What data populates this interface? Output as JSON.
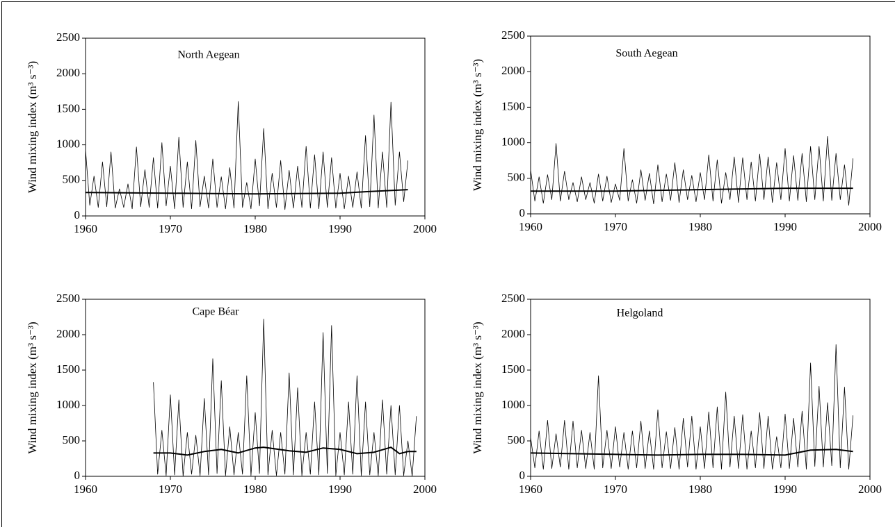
{
  "chart_data": [
    {
      "type": "line",
      "title": "North Aegean",
      "y_label": "Wind mixing index (m³ s⁻³)",
      "xlim": [
        1960,
        2000
      ],
      "xticks": [
        1960,
        1970,
        1980,
        1990,
        2000
      ],
      "ylim": [
        0,
        2500
      ],
      "yticks": [
        0,
        500,
        1000,
        1500,
        2000,
        2500
      ],
      "series": [
        {
          "color": "#000000",
          "line_width": 0.8,
          "x": [
            1960,
            1960.5,
            1961,
            1961.5,
            1962,
            1962.5,
            1963,
            1963.5,
            1964,
            1964.5,
            1965,
            1965.5,
            1966,
            1966.5,
            1967,
            1967.5,
            1968,
            1968.5,
            1969,
            1969.5,
            1970,
            1970.5,
            1971,
            1971.5,
            1972,
            1972.5,
            1973,
            1973.5,
            1974,
            1974.5,
            1975,
            1975.5,
            1976,
            1976.5,
            1977,
            1977.5,
            1978,
            1978.5,
            1979,
            1979.5,
            1980,
            1980.5,
            1981,
            1981.5,
            1982,
            1982.5,
            1983,
            1983.5,
            1984,
            1984.5,
            1985,
            1985.5,
            1986,
            1986.5,
            1987,
            1987.5,
            1988,
            1988.5,
            1989,
            1989.5,
            1990,
            1990.5,
            1991,
            1991.5,
            1992,
            1992.5,
            1993,
            1993.5,
            1994,
            1994.5,
            1995,
            1995.5,
            1996,
            1996.5,
            1997,
            1997.5,
            1998
          ],
          "values": [
            930,
            150,
            560,
            120,
            760,
            130,
            900,
            110,
            380,
            120,
            450,
            100,
            970,
            130,
            650,
            120,
            820,
            110,
            1030,
            140,
            700,
            100,
            1110,
            120,
            760,
            100,
            1060,
            130,
            560,
            110,
            800,
            120,
            550,
            100,
            680,
            110,
            1610,
            120,
            470,
            100,
            800,
            140,
            1230,
            100,
            600,
            120,
            780,
            90,
            640,
            110,
            700,
            120,
            980,
            110,
            860,
            100,
            900,
            120,
            820,
            110,
            600,
            100,
            560,
            120,
            620,
            110,
            1130,
            130,
            1420,
            110,
            900,
            120,
            1600,
            150,
            900,
            200,
            780
          ]
        },
        {
          "color": "#000000",
          "line_width": 2,
          "x": [
            1960,
            1965,
            1970,
            1975,
            1980,
            1985,
            1990,
            1993,
            1998
          ],
          "values": [
            330,
            325,
            320,
            315,
            310,
            315,
            320,
            340,
            370
          ]
        }
      ]
    },
    {
      "type": "line",
      "title": "South Aegean",
      "y_label": "Wind mixing index (m³ s⁻³)",
      "xlim": [
        1960,
        2000
      ],
      "xticks": [
        1960,
        1970,
        1980,
        1990,
        2000
      ],
      "ylim": [
        0,
        2500
      ],
      "yticks": [
        0,
        500,
        1000,
        1500,
        2000,
        2500
      ],
      "series": [
        {
          "color": "#000000",
          "line_width": 0.8,
          "x": [
            1960,
            1960.5,
            1961,
            1961.5,
            1962,
            1962.5,
            1963,
            1963.5,
            1964,
            1964.5,
            1965,
            1965.5,
            1966,
            1966.5,
            1967,
            1967.5,
            1968,
            1968.5,
            1969,
            1969.5,
            1970,
            1970.5,
            1971,
            1971.5,
            1972,
            1972.5,
            1973,
            1973.5,
            1974,
            1974.5,
            1975,
            1975.5,
            1976,
            1976.5,
            1977,
            1977.5,
            1978,
            1978.5,
            1979,
            1979.5,
            1980,
            1980.5,
            1981,
            1981.5,
            1982,
            1982.5,
            1983,
            1983.5,
            1984,
            1984.5,
            1985,
            1985.5,
            1986,
            1986.5,
            1987,
            1987.5,
            1988,
            1988.5,
            1989,
            1989.5,
            1990,
            1990.5,
            1991,
            1991.5,
            1992,
            1992.5,
            1993,
            1993.5,
            1994,
            1994.5,
            1995,
            1995.5,
            1996,
            1996.5,
            1997,
            1997.5,
            1998
          ],
          "values": [
            620,
            180,
            520,
            150,
            550,
            200,
            990,
            180,
            600,
            200,
            440,
            170,
            520,
            200,
            440,
            150,
            560,
            180,
            530,
            160,
            420,
            190,
            920,
            180,
            480,
            150,
            620,
            190,
            570,
            140,
            690,
            170,
            560,
            190,
            720,
            160,
            620,
            200,
            540,
            170,
            580,
            200,
            830,
            180,
            760,
            150,
            580,
            200,
            800,
            160,
            790,
            200,
            730,
            180,
            840,
            200,
            800,
            160,
            720,
            200,
            920,
            180,
            820,
            190,
            850,
            170,
            950,
            200,
            950,
            180,
            1090,
            190,
            850,
            200,
            690,
            120,
            780
          ]
        },
        {
          "color": "#000000",
          "line_width": 2,
          "x": [
            1960,
            1970,
            1980,
            1990,
            1998
          ],
          "values": [
            320,
            320,
            340,
            360,
            360
          ]
        }
      ]
    },
    {
      "type": "line",
      "title": "Cape Béar",
      "y_label": "Wind mixing index (m³ s⁻³)",
      "xlim": [
        1960,
        2000
      ],
      "xticks": [
        1960,
        1970,
        1980,
        1990,
        2000
      ],
      "ylim": [
        0,
        2500
      ],
      "yticks": [
        0,
        500,
        1000,
        1500,
        2000,
        2500
      ],
      "series": [
        {
          "color": "#000000",
          "line_width": 0.8,
          "x": [
            1968,
            1968.5,
            1969,
            1969.5,
            1970,
            1970.5,
            1971,
            1971.5,
            1972,
            1972.5,
            1973,
            1973.5,
            1974,
            1974.5,
            1975,
            1975.5,
            1976,
            1976.5,
            1977,
            1977.5,
            1978,
            1978.5,
            1979,
            1979.5,
            1980,
            1980.5,
            1981,
            1981.5,
            1982,
            1982.5,
            1983,
            1983.5,
            1984,
            1984.5,
            1985,
            1985.5,
            1986,
            1986.5,
            1987,
            1987.5,
            1988,
            1988.5,
            1989,
            1989.5,
            1990,
            1990.5,
            1991,
            1991.5,
            1992,
            1992.5,
            1993,
            1993.5,
            1994,
            1994.5,
            1995,
            1995.5,
            1996,
            1996.5,
            1997,
            1997.5,
            1998,
            1998.5,
            1999
          ],
          "values": [
            1330,
            30,
            650,
            10,
            1150,
            20,
            1080,
            0,
            620,
            30,
            580,
            10,
            1100,
            20,
            1660,
            40,
            1350,
            10,
            700,
            20,
            620,
            30,
            1420,
            10,
            900,
            40,
            2220,
            20,
            650,
            10,
            620,
            30,
            1460,
            20,
            1250,
            10,
            620,
            30,
            1050,
            20,
            2030,
            40,
            2130,
            10,
            620,
            20,
            1050,
            30,
            1420,
            10,
            1050,
            20,
            620,
            10,
            1080,
            30,
            1000,
            20,
            1000,
            10,
            500,
            0,
            850
          ]
        },
        {
          "color": "#000000",
          "line_width": 2,
          "x": [
            1968,
            1970,
            1972,
            1974,
            1976,
            1978,
            1980,
            1981,
            1984,
            1986,
            1988,
            1990,
            1992,
            1994,
            1996,
            1997,
            1998,
            1999
          ],
          "values": [
            330,
            330,
            300,
            350,
            380,
            330,
            400,
            410,
            360,
            340,
            400,
            380,
            320,
            340,
            410,
            320,
            350,
            350
          ]
        }
      ]
    },
    {
      "type": "line",
      "title": "Helgoland",
      "y_label": "Wind mixing index (m³ s⁻³)",
      "xlim": [
        1960,
        2000
      ],
      "xticks": [
        1960,
        1970,
        1980,
        1990,
        2000
      ],
      "ylim": [
        0,
        2500
      ],
      "yticks": [
        0,
        500,
        1000,
        1500,
        2000,
        2500
      ],
      "series": [
        {
          "color": "#000000",
          "line_width": 0.8,
          "x": [
            1960,
            1960.5,
            1961,
            1961.5,
            1962,
            1962.5,
            1963,
            1963.5,
            1964,
            1964.5,
            1965,
            1965.5,
            1966,
            1966.5,
            1967,
            1967.5,
            1968,
            1968.5,
            1969,
            1969.5,
            1970,
            1970.5,
            1971,
            1971.5,
            1972,
            1972.5,
            1973,
            1973.5,
            1974,
            1974.5,
            1975,
            1975.5,
            1976,
            1976.5,
            1977,
            1977.5,
            1978,
            1978.5,
            1979,
            1979.5,
            1980,
            1980.5,
            1981,
            1981.5,
            1982,
            1982.5,
            1983,
            1983.5,
            1984,
            1984.5,
            1985,
            1985.5,
            1986,
            1986.5,
            1987,
            1987.5,
            1988,
            1988.5,
            1989,
            1989.5,
            1990,
            1990.5,
            1991,
            1991.5,
            1992,
            1992.5,
            1993,
            1993.5,
            1994,
            1994.5,
            1995,
            1995.5,
            1996,
            1996.5,
            1997,
            1997.5,
            1998
          ],
          "values": [
            550,
            120,
            640,
            100,
            790,
            110,
            600,
            130,
            790,
            100,
            780,
            120,
            650,
            110,
            620,
            100,
            1420,
            120,
            650,
            110,
            700,
            130,
            620,
            100,
            640,
            120,
            780,
            110,
            640,
            100,
            940,
            120,
            630,
            110,
            690,
            100,
            820,
            130,
            850,
            100,
            700,
            110,
            910,
            120,
            980,
            100,
            1190,
            130,
            850,
            110,
            870,
            100,
            640,
            120,
            900,
            110,
            850,
            100,
            560,
            120,
            880,
            110,
            820,
            130,
            920,
            100,
            1600,
            140,
            1270,
            130,
            1040,
            150,
            1860,
            120,
            1260,
            100,
            860
          ]
        },
        {
          "color": "#000000",
          "line_width": 2,
          "x": [
            1960,
            1965,
            1970,
            1975,
            1980,
            1985,
            1990,
            1993,
            1996,
            1998
          ],
          "values": [
            330,
            320,
            310,
            300,
            310,
            310,
            300,
            370,
            380,
            350
          ]
        }
      ]
    }
  ]
}
